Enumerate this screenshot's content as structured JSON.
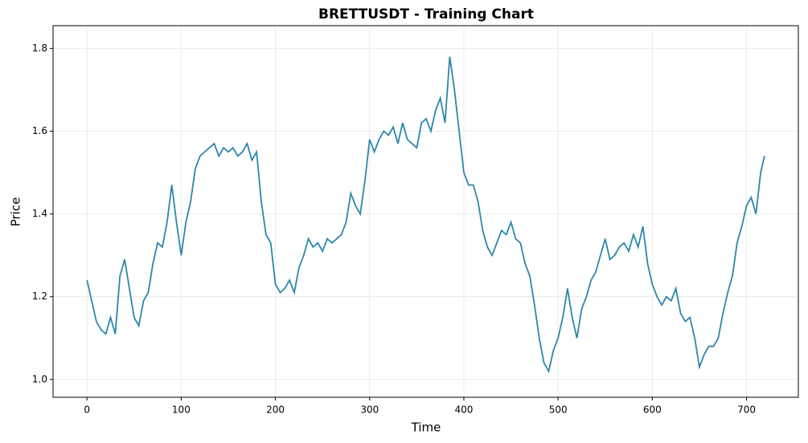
{
  "chart_data": {
    "type": "line",
    "title": "BRETTUSDT - Training Chart",
    "xlabel": "Time",
    "ylabel": "Price",
    "x": [
      0,
      5,
      10,
      15,
      20,
      25,
      30,
      35,
      40,
      45,
      50,
      55,
      60,
      65,
      70,
      75,
      80,
      85,
      90,
      95,
      100,
      105,
      110,
      115,
      120,
      125,
      130,
      135,
      140,
      145,
      150,
      155,
      160,
      165,
      170,
      175,
      180,
      185,
      190,
      195,
      200,
      205,
      210,
      215,
      220,
      225,
      230,
      235,
      240,
      245,
      250,
      255,
      260,
      265,
      270,
      275,
      280,
      285,
      290,
      295,
      300,
      305,
      310,
      315,
      320,
      325,
      330,
      335,
      340,
      345,
      350,
      355,
      360,
      365,
      370,
      375,
      380,
      385,
      390,
      395,
      400,
      405,
      410,
      415,
      420,
      425,
      430,
      435,
      440,
      445,
      450,
      455,
      460,
      465,
      470,
      475,
      480,
      485,
      490,
      495,
      500,
      505,
      510,
      515,
      520,
      525,
      530,
      535,
      540,
      545,
      550,
      555,
      560,
      565,
      570,
      575,
      580,
      585,
      590,
      595,
      600,
      605,
      610,
      615,
      620,
      625,
      630,
      635,
      640,
      645,
      650,
      655,
      660,
      665,
      670,
      675,
      680,
      685,
      690,
      695,
      700,
      705,
      710,
      715,
      719
    ],
    "series": [
      {
        "name": "Price",
        "color": "#2e86ab",
        "values": [
          1.24,
          1.19,
          1.14,
          1.12,
          1.11,
          1.15,
          1.11,
          1.25,
          1.29,
          1.22,
          1.15,
          1.13,
          1.19,
          1.21,
          1.28,
          1.33,
          1.32,
          1.38,
          1.47,
          1.38,
          1.3,
          1.38,
          1.43,
          1.51,
          1.54,
          1.55,
          1.56,
          1.57,
          1.54,
          1.56,
          1.55,
          1.56,
          1.54,
          1.55,
          1.57,
          1.53,
          1.55,
          1.43,
          1.35,
          1.33,
          1.23,
          1.21,
          1.22,
          1.24,
          1.21,
          1.27,
          1.3,
          1.34,
          1.32,
          1.33,
          1.31,
          1.34,
          1.33,
          1.34,
          1.35,
          1.38,
          1.45,
          1.42,
          1.4,
          1.48,
          1.58,
          1.55,
          1.58,
          1.6,
          1.59,
          1.61,
          1.57,
          1.62,
          1.58,
          1.57,
          1.56,
          1.62,
          1.63,
          1.6,
          1.65,
          1.68,
          1.62,
          1.78,
          1.7,
          1.6,
          1.5,
          1.47,
          1.47,
          1.43,
          1.36,
          1.32,
          1.3,
          1.33,
          1.36,
          1.35,
          1.38,
          1.34,
          1.33,
          1.28,
          1.25,
          1.18,
          1.1,
          1.04,
          1.02,
          1.07,
          1.1,
          1.15,
          1.22,
          1.15,
          1.1,
          1.17,
          1.2,
          1.24,
          1.26,
          1.3,
          1.34,
          1.29,
          1.3,
          1.32,
          1.33,
          1.31,
          1.35,
          1.32,
          1.37,
          1.28,
          1.23,
          1.2,
          1.18,
          1.2,
          1.19,
          1.22,
          1.16,
          1.14,
          1.15,
          1.1,
          1.03,
          1.06,
          1.08,
          1.08,
          1.1,
          1.16,
          1.21,
          1.25,
          1.33,
          1.37,
          1.42,
          1.44,
          1.4,
          1.5,
          1.54
        ]
      }
    ],
    "xlim": [
      -36,
      755
    ],
    "ylim": [
      0.957,
      1.855
    ],
    "xticks": [
      0,
      100,
      200,
      300,
      400,
      500,
      600,
      700
    ],
    "yticks": [
      {
        "value": 1.0,
        "label": "1.0"
      },
      {
        "value": 1.2,
        "label": "1.2"
      },
      {
        "value": 1.4,
        "label": "1.4"
      },
      {
        "value": 1.6,
        "label": "1.6"
      },
      {
        "value": 1.8,
        "label": "1.8"
      }
    ],
    "grid": true
  }
}
